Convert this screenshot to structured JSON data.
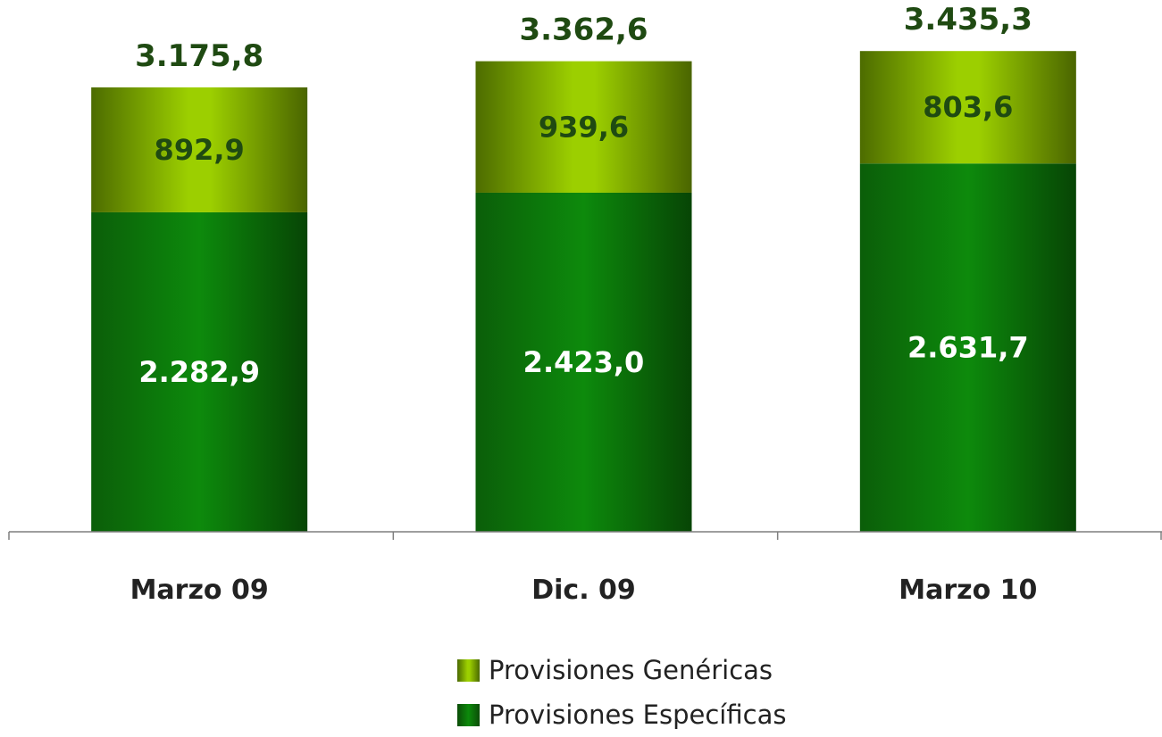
{
  "chart_data": {
    "type": "bar",
    "stacked": true,
    "categories": [
      "Marzo 09",
      "Dic. 09",
      "Marzo 10"
    ],
    "series": [
      {
        "name": "Provisiones Específicas",
        "values": [
          2282.9,
          2423.0,
          2631.7
        ],
        "labels": [
          "2.282,9",
          "2.423,0",
          "2.631,7"
        ],
        "color": "#0c7a0b"
      },
      {
        "name": "Provisiones Genéricas",
        "values": [
          892.9,
          939.6,
          803.6
        ],
        "labels": [
          "892,9",
          "939,6",
          "803,6"
        ],
        "color": "#9ccf00"
      }
    ],
    "totals": [
      3175.8,
      3362.6,
      3435.3
    ],
    "total_labels": [
      "3.175,8",
      "3.362,6",
      "3.435,3"
    ],
    "ylim": [
      0,
      3800
    ],
    "grid": false,
    "legend": "bottom-center",
    "title": "",
    "xlabel": "",
    "ylabel": ""
  }
}
